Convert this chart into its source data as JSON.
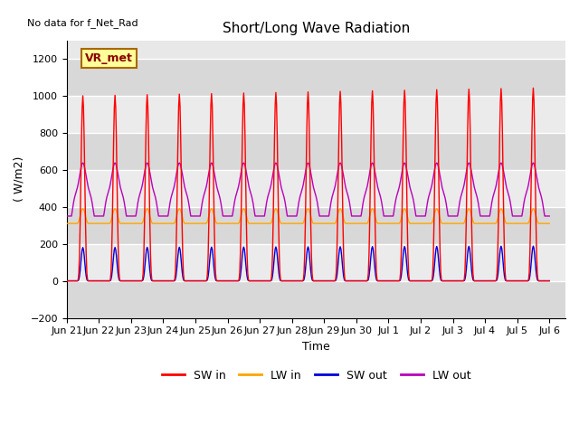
{
  "title": "Short/Long Wave Radiation",
  "xlabel": "Time",
  "ylabel": "( W/m2)",
  "top_left_text": "No data for f_Net_Rad",
  "box_label": "VR_met",
  "ylim": [
    -200,
    1300
  ],
  "yticks": [
    -200,
    0,
    200,
    400,
    600,
    800,
    1000,
    1200
  ],
  "x_tick_labels": [
    "Jun 21",
    "Jun 22",
    "Jun 23",
    "Jun 24",
    "Jun 25",
    "Jun 26",
    "Jun 27",
    "Jun 28",
    "Jun 29",
    "Jun 30",
    "Jul 1",
    "Jul 2",
    "Jul 3",
    "Jul 4",
    "Jul 5",
    "Jul 6"
  ],
  "colors": {
    "SW_in": "#ff0000",
    "LW_in": "#ffa500",
    "SW_out": "#0000dd",
    "LW_out": "#bb00bb"
  },
  "legend_labels": [
    "SW in",
    "LW in",
    "SW out",
    "LW out"
  ],
  "background_plot": "#e8e8e8",
  "grid_color": "#ffffff",
  "grid_band_light": "#ebebeb",
  "grid_band_dark": "#d8d8d8",
  "box_facecolor": "#ffff99",
  "box_edgecolor": "#aa6600",
  "title_fontsize": 11,
  "tick_fontsize": 8,
  "label_fontsize": 9
}
